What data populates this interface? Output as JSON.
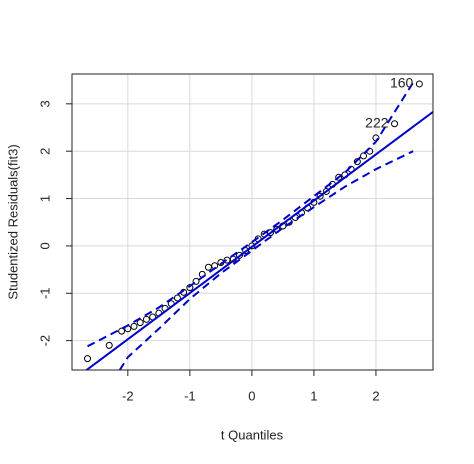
{
  "chart_data": {
    "type": "scatter",
    "x_label": "t Quantiles",
    "y_label": "Studentized Residuals(fit3)",
    "xlim": [
      -2.9,
      2.92
    ],
    "ylim": [
      -2.62,
      3.63
    ],
    "xticks": [
      -2,
      -1,
      0,
      1,
      2
    ],
    "yticks": [
      -2,
      -1,
      0,
      1,
      2,
      3
    ],
    "grid": true,
    "series": [
      {
        "kind": "points",
        "color": "#000000",
        "x": [
          -2.65,
          -2.3,
          -2.1,
          -2.0,
          -1.9,
          -1.8,
          -1.7,
          -1.6,
          -1.5,
          -1.4,
          -1.3,
          -1.2,
          -1.1,
          -1.0,
          -0.9,
          -0.8,
          -0.7,
          -0.6,
          -0.5,
          -0.4,
          -0.3,
          -0.2,
          -0.1,
          0,
          0.1,
          0.2,
          0.3,
          0.4,
          0.5,
          0.6,
          0.7,
          0.8,
          0.9,
          1.0,
          1.1,
          1.2,
          1.3,
          1.4,
          1.5,
          1.6,
          1.7,
          1.8,
          1.9,
          2.0,
          2.3,
          2.7
        ],
        "values": [
          -2.38,
          -2.1,
          -1.8,
          -1.75,
          -1.7,
          -1.62,
          -1.55,
          -1.5,
          -1.42,
          -1.32,
          -1.22,
          -1.1,
          -0.98,
          -0.88,
          -0.75,
          -0.6,
          -0.45,
          -0.42,
          -0.35,
          -0.3,
          -0.28,
          -0.2,
          -0.1,
          0.0,
          0.15,
          0.25,
          0.28,
          0.35,
          0.42,
          0.5,
          0.6,
          0.7,
          0.8,
          0.92,
          1.05,
          1.15,
          1.3,
          1.45,
          1.5,
          1.62,
          1.78,
          1.9,
          2.0,
          2.28,
          2.58,
          3.42
        ]
      },
      {
        "kind": "line",
        "style": "solid",
        "color": "#0000cd",
        "x": [
          -2.9,
          2.92
        ],
        "values": [
          -2.85,
          2.83
        ]
      },
      {
        "kind": "line",
        "style": "dashed",
        "color": "#0000cd",
        "x": [
          -2.65,
          -2,
          -1.5,
          -1,
          -0.5,
          0,
          0.5,
          1,
          1.5,
          2,
          2.6
        ],
        "values": [
          -2.12,
          -1.68,
          -1.3,
          -0.85,
          -0.38,
          0.08,
          0.55,
          1.05,
          1.55,
          2.2,
          3.45
        ]
      },
      {
        "kind": "line",
        "style": "dashed",
        "color": "#0000cd",
        "x": [
          -2.13,
          -2,
          -1.5,
          -1,
          -0.5,
          0,
          0.5,
          1,
          1.5,
          2,
          2.6
        ],
        "values": [
          -2.62,
          -2.35,
          -1.75,
          -1.12,
          -0.58,
          -0.1,
          0.38,
          0.82,
          1.25,
          1.62,
          2.0
        ]
      }
    ],
    "annotations": [
      {
        "text": "160",
        "x": 2.7,
        "y": 3.42
      },
      {
        "text": "222",
        "x": 2.3,
        "y": 2.58
      }
    ]
  }
}
